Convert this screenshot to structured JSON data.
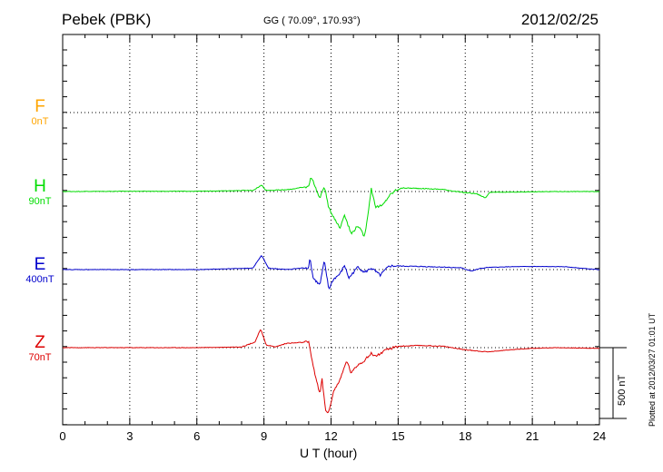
{
  "header": {
    "station": "Pebek (PBK)",
    "coords": "GG ( 70.09°, 170.93°)",
    "date": "2012/02/25"
  },
  "xlabel": "U T (hour)",
  "plotted_note": "Plotted at 2012/03/27 01:01 UT",
  "scale_bar": {
    "label": "500 nT",
    "value_nT": 500
  },
  "colors": {
    "F": "#ffa500",
    "H": "#00dd00",
    "E": "#0000cc",
    "Z": "#dd0000",
    "grid": "#000000"
  },
  "chart_data": {
    "type": "line",
    "title": "Pebek (PBK)",
    "xlabel": "U T (hour)",
    "xlim": [
      0,
      24
    ],
    "xticks": [
      "0",
      "3",
      "6",
      "9",
      "12",
      "15",
      "18",
      "21",
      "24"
    ],
    "grid": true,
    "units": "nT",
    "components": [
      {
        "name": "F",
        "offset_label": "0nT",
        "color": "#ffa500",
        "baseline_nT": 0,
        "values": []
      },
      {
        "name": "H",
        "offset_label": "90nT",
        "color": "#00dd00",
        "points": [
          [
            0,
            0
          ],
          [
            3,
            2
          ],
          [
            6,
            2
          ],
          [
            8.5,
            8
          ],
          [
            8.9,
            45
          ],
          [
            9.1,
            8
          ],
          [
            10,
            12
          ],
          [
            11,
            35
          ],
          [
            11.1,
            110
          ],
          [
            11.3,
            30
          ],
          [
            11.5,
            -50
          ],
          [
            11.7,
            40
          ],
          [
            11.9,
            -120
          ],
          [
            12.2,
            -200
          ],
          [
            12.4,
            -260
          ],
          [
            12.6,
            -160
          ],
          [
            12.9,
            -300
          ],
          [
            13.2,
            -240
          ],
          [
            13.5,
            -320
          ],
          [
            13.7,
            -100
          ],
          [
            13.8,
            20
          ],
          [
            14,
            -110
          ],
          [
            14.3,
            -100
          ],
          [
            14.6,
            -30
          ],
          [
            14.9,
            10
          ],
          [
            15.2,
            25
          ],
          [
            16,
            22
          ],
          [
            17,
            15
          ],
          [
            17.8,
            -5
          ],
          [
            18.5,
            -15
          ],
          [
            18.9,
            -45
          ],
          [
            19.1,
            -5
          ],
          [
            20,
            -5
          ],
          [
            22,
            0
          ],
          [
            24,
            0
          ]
        ]
      },
      {
        "name": "E",
        "offset_label": "400nT",
        "color": "#0000cc",
        "points": [
          [
            0,
            0
          ],
          [
            3,
            0
          ],
          [
            6,
            0
          ],
          [
            8.5,
            10
          ],
          [
            8.9,
            100
          ],
          [
            9.2,
            10
          ],
          [
            10,
            0
          ],
          [
            11,
            15
          ],
          [
            11.05,
            90
          ],
          [
            11.2,
            -60
          ],
          [
            11.5,
            -110
          ],
          [
            11.7,
            60
          ],
          [
            11.9,
            -140
          ],
          [
            12.1,
            -70
          ],
          [
            12.4,
            -30
          ],
          [
            12.6,
            30
          ],
          [
            12.8,
            -60
          ],
          [
            13.2,
            20
          ],
          [
            13.5,
            -20
          ],
          [
            13.8,
            10
          ],
          [
            14.2,
            -40
          ],
          [
            14.6,
            25
          ],
          [
            15,
            25
          ],
          [
            16,
            22
          ],
          [
            17,
            18
          ],
          [
            17.8,
            12
          ],
          [
            18.3,
            -10
          ],
          [
            18.6,
            5
          ],
          [
            19,
            15
          ],
          [
            20,
            20
          ],
          [
            21,
            22
          ],
          [
            22.5,
            20
          ],
          [
            23.5,
            5
          ],
          [
            24,
            0
          ]
        ]
      },
      {
        "name": "Z",
        "offset_label": "70nT",
        "color": "#dd0000",
        "points": [
          [
            0,
            0
          ],
          [
            3,
            0
          ],
          [
            6,
            0
          ],
          [
            8,
            5
          ],
          [
            8.6,
            40
          ],
          [
            8.85,
            130
          ],
          [
            9.1,
            20
          ],
          [
            9.5,
            5
          ],
          [
            10,
            30
          ],
          [
            11,
            40
          ],
          [
            11.05,
            -10
          ],
          [
            11.3,
            -200
          ],
          [
            11.5,
            -330
          ],
          [
            11.6,
            -220
          ],
          [
            11.75,
            -440
          ],
          [
            11.9,
            -460
          ],
          [
            12.1,
            -310
          ],
          [
            12.4,
            -230
          ],
          [
            12.7,
            -90
          ],
          [
            12.9,
            -180
          ],
          [
            13.2,
            -120
          ],
          [
            13.5,
            -90
          ],
          [
            13.8,
            -40
          ],
          [
            14,
            -60
          ],
          [
            14.5,
            -15
          ],
          [
            15,
            10
          ],
          [
            16,
            15
          ],
          [
            17,
            10
          ],
          [
            18,
            -15
          ],
          [
            19,
            -30
          ],
          [
            20,
            -15
          ],
          [
            21,
            -5
          ],
          [
            22,
            0
          ],
          [
            24,
            -5
          ]
        ]
      }
    ]
  }
}
